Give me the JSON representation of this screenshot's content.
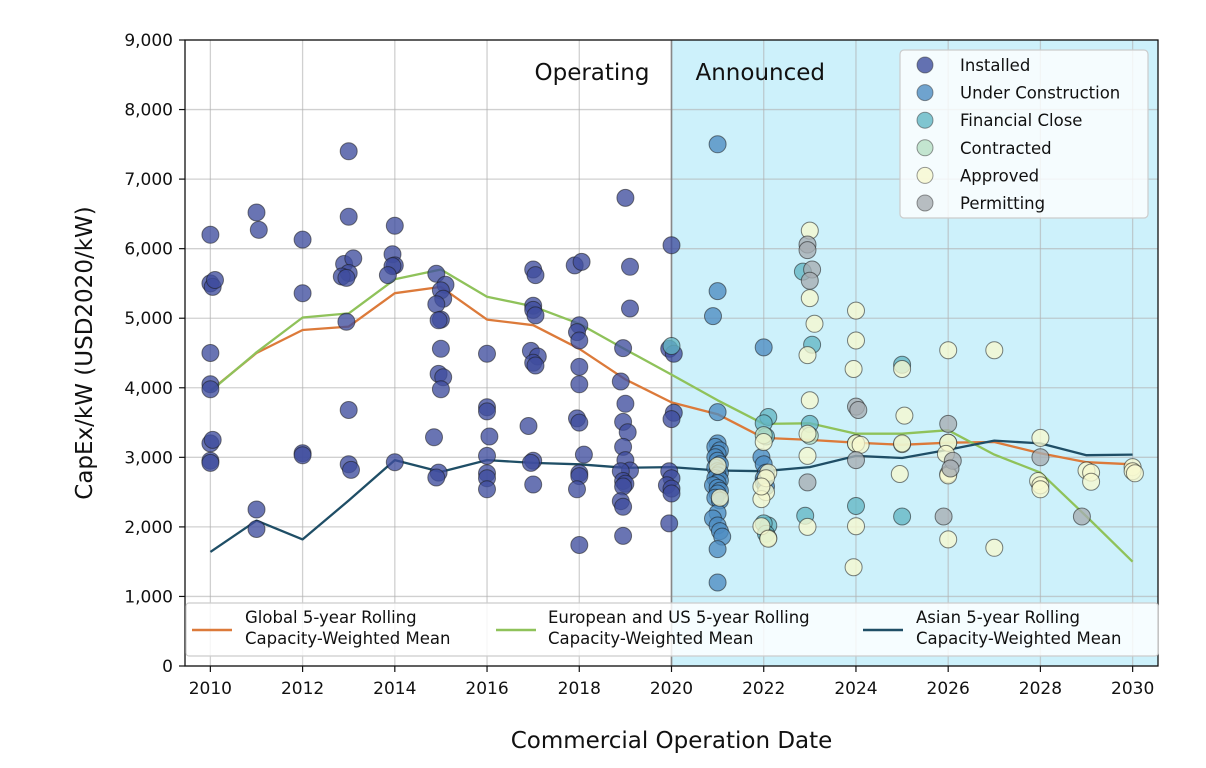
{
  "chart_data": {
    "type": "scatter",
    "title": "",
    "xlabel": "Commercial Operation Date",
    "ylabel": "CapEx/kW (USD2020/kW)",
    "xlim": [
      2009.45,
      2030.55
    ],
    "ylim": [
      0,
      9000
    ],
    "grid": true,
    "x_ticks": [
      2010,
      2012,
      2014,
      2016,
      2018,
      2020,
      2022,
      2024,
      2026,
      2028,
      2030
    ],
    "x_tick_labels": [
      "2010",
      "2012",
      "2014",
      "2016",
      "2018",
      "2020",
      "2022",
      "2024",
      "2026",
      "2028",
      "2030"
    ],
    "y_ticks": [
      0,
      1000,
      2000,
      3000,
      4000,
      5000,
      6000,
      7000,
      8000,
      9000
    ],
    "y_tick_labels": [
      "0",
      "1,000",
      "2,000",
      "3,000",
      "4,000",
      "5,000",
      "6,000",
      "7,000",
      "8,000",
      "9,000"
    ],
    "regions": [
      {
        "label": "Operating",
        "x_range": [
          2009.45,
          2020
        ],
        "color": "#ffffff"
      },
      {
        "label": "Announced",
        "x_range": [
          2020,
          2030.55
        ],
        "color": "#cdf1fb"
      }
    ],
    "scatter_legend_placement": "top-right",
    "line_legend_placement": "bottom",
    "scatter_series": [
      {
        "name": "Installed",
        "color": "#3f4d9e",
        "points": [
          [
            2010,
            6200
          ],
          [
            2010,
            5500
          ],
          [
            2010.05,
            5450
          ],
          [
            2010.1,
            5550
          ],
          [
            2010,
            4500
          ],
          [
            2010,
            4050
          ],
          [
            2010,
            3980
          ],
          [
            2010,
            3200
          ],
          [
            2010.05,
            3250
          ],
          [
            2010,
            2950
          ],
          [
            2010,
            2920
          ],
          [
            2011,
            6520
          ],
          [
            2011.05,
            6270
          ],
          [
            2011,
            2250
          ],
          [
            2011,
            1970
          ],
          [
            2012,
            6130
          ],
          [
            2012,
            5360
          ],
          [
            2012,
            3060
          ],
          [
            2012,
            3030
          ],
          [
            2013,
            7400
          ],
          [
            2013,
            6460
          ],
          [
            2012.9,
            5780
          ],
          [
            2013.1,
            5860
          ],
          [
            2013,
            5650
          ],
          [
            2012.85,
            5600
          ],
          [
            2012.95,
            5580
          ],
          [
            2012.95,
            4950
          ],
          [
            2013,
            3680
          ],
          [
            2013,
            2900
          ],
          [
            2013.05,
            2820
          ],
          [
            2014,
            6330
          ],
          [
            2013.95,
            5920
          ],
          [
            2014,
            5760
          ],
          [
            2013.95,
            5750
          ],
          [
            2013.85,
            5620
          ],
          [
            2014,
            2930
          ],
          [
            2014.9,
            5640
          ],
          [
            2015.1,
            5480
          ],
          [
            2015,
            5400
          ],
          [
            2015.05,
            5280
          ],
          [
            2014.9,
            5200
          ],
          [
            2015,
            4980
          ],
          [
            2014.95,
            4970
          ],
          [
            2015,
            4560
          ],
          [
            2014.95,
            4200
          ],
          [
            2015.05,
            4150
          ],
          [
            2015,
            3980
          ],
          [
            2014.85,
            3290
          ],
          [
            2014.95,
            2780
          ],
          [
            2014.9,
            2710
          ],
          [
            2016,
            4490
          ],
          [
            2016,
            3720
          ],
          [
            2016,
            3660
          ],
          [
            2016.05,
            3300
          ],
          [
            2016,
            3020
          ],
          [
            2016,
            2770
          ],
          [
            2016,
            2700
          ],
          [
            2016,
            2540
          ],
          [
            2017,
            5700
          ],
          [
            2017.05,
            5620
          ],
          [
            2017,
            5180
          ],
          [
            2017,
            5120
          ],
          [
            2017.05,
            5040
          ],
          [
            2016.95,
            4530
          ],
          [
            2017.1,
            4450
          ],
          [
            2017,
            4360
          ],
          [
            2017.05,
            4320
          ],
          [
            2016.9,
            3450
          ],
          [
            2017,
            2950
          ],
          [
            2016.95,
            2920
          ],
          [
            2017,
            2610
          ],
          [
            2017.9,
            5760
          ],
          [
            2018.05,
            5810
          ],
          [
            2018,
            4900
          ],
          [
            2017.95,
            4800
          ],
          [
            2018,
            4680
          ],
          [
            2018,
            4300
          ],
          [
            2018,
            4050
          ],
          [
            2017.95,
            3560
          ],
          [
            2018,
            3500
          ],
          [
            2018.1,
            3040
          ],
          [
            2018,
            2770
          ],
          [
            2018,
            2730
          ],
          [
            2017.95,
            2540
          ],
          [
            2018,
            1740
          ],
          [
            2019,
            6730
          ],
          [
            2019.1,
            5740
          ],
          [
            2019.1,
            5140
          ],
          [
            2018.95,
            4570
          ],
          [
            2018.9,
            4090
          ],
          [
            2019,
            3770
          ],
          [
            2018.95,
            3510
          ],
          [
            2019.05,
            3360
          ],
          [
            2018.95,
            3150
          ],
          [
            2019,
            2960
          ],
          [
            2019.1,
            2810
          ],
          [
            2018.9,
            2800
          ],
          [
            2018.95,
            2660
          ],
          [
            2019,
            2620
          ],
          [
            2018.95,
            2580
          ],
          [
            2018.9,
            2370
          ],
          [
            2018.95,
            2290
          ],
          [
            2018.95,
            1870
          ],
          [
            2020,
            6050
          ],
          [
            2019.95,
            4560
          ],
          [
            2020.05,
            4490
          ],
          [
            2020.05,
            3640
          ],
          [
            2020,
            3550
          ],
          [
            2019.95,
            2800
          ],
          [
            2020,
            2700
          ],
          [
            2019.9,
            2600
          ],
          [
            2020,
            2550
          ],
          [
            2020,
            2480
          ],
          [
            2019.95,
            2050
          ]
        ]
      },
      {
        "name": "Under Construction",
        "color": "#4d8cc2",
        "points": [
          [
            2021,
            7500
          ],
          [
            2021,
            5390
          ],
          [
            2020.9,
            5030
          ],
          [
            2021,
            3650
          ],
          [
            2021,
            3200
          ],
          [
            2020.95,
            3150
          ],
          [
            2021.05,
            3100
          ],
          [
            2021,
            3050
          ],
          [
            2020.95,
            3000
          ],
          [
            2021,
            2950
          ],
          [
            2021.05,
            2900
          ],
          [
            2020.95,
            2850
          ],
          [
            2021,
            2800
          ],
          [
            2021.05,
            2780
          ],
          [
            2021,
            2740
          ],
          [
            2020.95,
            2700
          ],
          [
            2021.05,
            2670
          ],
          [
            2021,
            2630
          ],
          [
            2020.9,
            2600
          ],
          [
            2021,
            2560
          ],
          [
            2021.05,
            2520
          ],
          [
            2021,
            2480
          ],
          [
            2020.95,
            2420
          ],
          [
            2021.05,
            2380
          ],
          [
            2021,
            2200
          ],
          [
            2020.9,
            2120
          ],
          [
            2021,
            2020
          ],
          [
            2021.05,
            1940
          ],
          [
            2021.1,
            1860
          ],
          [
            2021,
            1680
          ],
          [
            2021,
            1200
          ],
          [
            2022,
            4580
          ],
          [
            2021.95,
            3000
          ],
          [
            2022,
            2900
          ],
          [
            2022.05,
            2780
          ],
          [
            2022,
            2700
          ],
          [
            2022,
            2640
          ],
          [
            2022.05,
            2580
          ]
        ]
      },
      {
        "name": "Financial Close",
        "color": "#63b6c4",
        "points": [
          [
            2020,
            4600
          ],
          [
            2022.1,
            3580
          ],
          [
            2022,
            3490
          ],
          [
            2022.05,
            3300
          ],
          [
            2022.1,
            2020
          ],
          [
            2022,
            2050
          ],
          [
            2022.05,
            1900
          ],
          [
            2022.85,
            5670
          ],
          [
            2023.05,
            4620
          ],
          [
            2023,
            3480
          ],
          [
            2022.9,
            2160
          ],
          [
            2025,
            4330
          ],
          [
            2024,
            2300
          ],
          [
            2025,
            2150
          ]
        ]
      },
      {
        "name": "Contracted",
        "color": "#b6dfc4",
        "points": [
          [
            2022,
            3320
          ],
          [
            2022.1,
            1840
          ],
          [
            2023,
            3310
          ],
          [
            2024,
            3200
          ],
          [
            2025,
            3190
          ],
          [
            2026,
            3210
          ]
        ]
      },
      {
        "name": "Approved",
        "color": "#f7f8d0",
        "points": [
          [
            2022,
            3220
          ],
          [
            2022.05,
            2500
          ],
          [
            2021.95,
            2400
          ],
          [
            2022.1,
            2780
          ],
          [
            2022.05,
            2700
          ],
          [
            2021.95,
            2580
          ],
          [
            2021.95,
            2010
          ],
          [
            2022.1,
            1830
          ],
          [
            2021,
            2880
          ],
          [
            2021.05,
            2420
          ],
          [
            2023,
            6260
          ],
          [
            2023,
            5290
          ],
          [
            2023.1,
            4920
          ],
          [
            2022.95,
            4470
          ],
          [
            2023,
            3820
          ],
          [
            2022.95,
            3340
          ],
          [
            2022.95,
            3020
          ],
          [
            2022.95,
            2000
          ],
          [
            2024,
            5110
          ],
          [
            2024,
            4680
          ],
          [
            2023.95,
            4270
          ],
          [
            2024,
            3200
          ],
          [
            2024.1,
            3180
          ],
          [
            2024,
            2010
          ],
          [
            2023.95,
            1420
          ],
          [
            2025,
            4270
          ],
          [
            2025.05,
            3600
          ],
          [
            2025,
            3200
          ],
          [
            2024.95,
            2760
          ],
          [
            2026,
            4540
          ],
          [
            2026,
            3210
          ],
          [
            2025.95,
            3050
          ],
          [
            2026,
            2760
          ],
          [
            2026,
            2740
          ],
          [
            2026,
            1820
          ],
          [
            2027,
            4540
          ],
          [
            2027,
            1700
          ],
          [
            2028,
            3280
          ],
          [
            2027.95,
            2660
          ],
          [
            2028,
            2600
          ],
          [
            2028,
            2540
          ],
          [
            2029,
            2810
          ],
          [
            2029.1,
            2780
          ],
          [
            2029.1,
            2650
          ],
          [
            2030,
            2860
          ],
          [
            2030,
            2800
          ],
          [
            2030.05,
            2770
          ]
        ]
      },
      {
        "name": "Permitting",
        "color": "#a7adb2",
        "points": [
          [
            2022.95,
            6060
          ],
          [
            2022.95,
            5980
          ],
          [
            2023.05,
            5700
          ],
          [
            2023,
            5540
          ],
          [
            2024,
            3730
          ],
          [
            2024.05,
            3680
          ],
          [
            2024,
            2960
          ],
          [
            2022.95,
            2640
          ],
          [
            2026,
            3480
          ],
          [
            2026.1,
            2950
          ],
          [
            2026.05,
            2840
          ],
          [
            2025.9,
            2150
          ],
          [
            2028,
            3000
          ],
          [
            2028.9,
            2150
          ]
        ]
      }
    ],
    "line_series": [
      {
        "name": "Global 5-year Rolling Capacity-Weighted Mean",
        "color": "#dc7a3a",
        "x": [
          2010,
          2011,
          2012,
          2013,
          2014,
          2015,
          2016,
          2017,
          2018,
          2019,
          2020,
          2021,
          2022,
          2023,
          2024,
          2025,
          2026,
          2027,
          2028,
          2029,
          2030
        ],
        "values": [
          3960,
          4500,
          4830,
          4880,
          5360,
          5450,
          4980,
          4900,
          4560,
          4120,
          3790,
          3620,
          3280,
          3250,
          3210,
          3180,
          3210,
          3220,
          3060,
          2930,
          2900
        ]
      },
      {
        "name": "European and US 5-year Rolling Capacity-Weighted Mean",
        "color": "#8fc25a",
        "x": [
          2010,
          2011,
          2012,
          2013,
          2014,
          2015,
          2016,
          2017,
          2018,
          2019,
          2020,
          2021,
          2022,
          2023,
          2024,
          2025,
          2026,
          2027,
          2028,
          2029,
          2030
        ],
        "values": [
          3950,
          4510,
          5010,
          5070,
          5560,
          5700,
          5310,
          5170,
          4920,
          4550,
          4190,
          3820,
          3480,
          3490,
          3340,
          3340,
          3390,
          3040,
          2780,
          2150,
          1500
        ]
      },
      {
        "name": "Asian 5-year Rolling Capacity-Weighted Mean",
        "color": "#1f4e66",
        "x": [
          2010,
          2011,
          2012,
          2013,
          2014,
          2015,
          2016,
          2017,
          2018,
          2019,
          2020,
          2021,
          2022,
          2023,
          2024,
          2025,
          2026,
          2027,
          2028,
          2029,
          2030
        ],
        "values": [
          1640,
          2090,
          1820,
          2380,
          2960,
          2790,
          2960,
          2920,
          2900,
          2850,
          2860,
          2810,
          2800,
          2860,
          3020,
          2990,
          3110,
          3240,
          3200,
          3030,
          3040
        ]
      }
    ]
  }
}
